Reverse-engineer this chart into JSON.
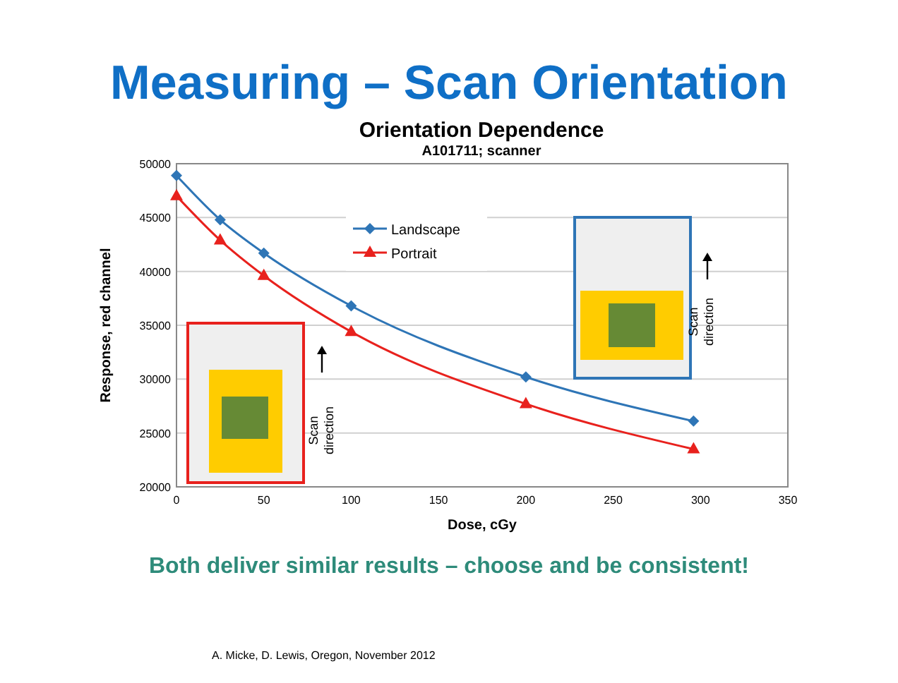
{
  "chart_data": {
    "type": "line",
    "title": "Measuring – Scan Orientation",
    "subtitle": "Orientation Dependence",
    "xlabel": "Dose, cGy",
    "ylabel": "Response, red channel",
    "x": [
      0,
      25,
      50,
      100,
      200,
      296
    ],
    "series": [
      {
        "name": "Landscape",
        "color": "#2e75b6",
        "marker": "diamond",
        "values": [
          48900,
          44800,
          41700,
          36800,
          30200,
          26100
        ]
      },
      {
        "name": "Portrait",
        "color": "#e8211d",
        "marker": "triangle",
        "values": [
          47000,
          42900,
          39600,
          34400,
          27700,
          23500
        ]
      }
    ],
    "xlim": [
      0,
      350
    ],
    "xticks": [
      0,
      50,
      100,
      150,
      200,
      250,
      300,
      350
    ],
    "ylim": [
      20000,
      50000
    ],
    "yticks": [
      20000,
      25000,
      30000,
      35000,
      40000,
      45000,
      50000
    ],
    "grid": "y",
    "legend": "top",
    "line_style": "solid",
    "annotations": [
      "A101711; scanner",
      "Scan direction",
      "Scan direction",
      "Both deliver similar results – choose and be consistent!",
      "A. Micke, D. Lewis, Oregon, November 2012"
    ]
  }
}
